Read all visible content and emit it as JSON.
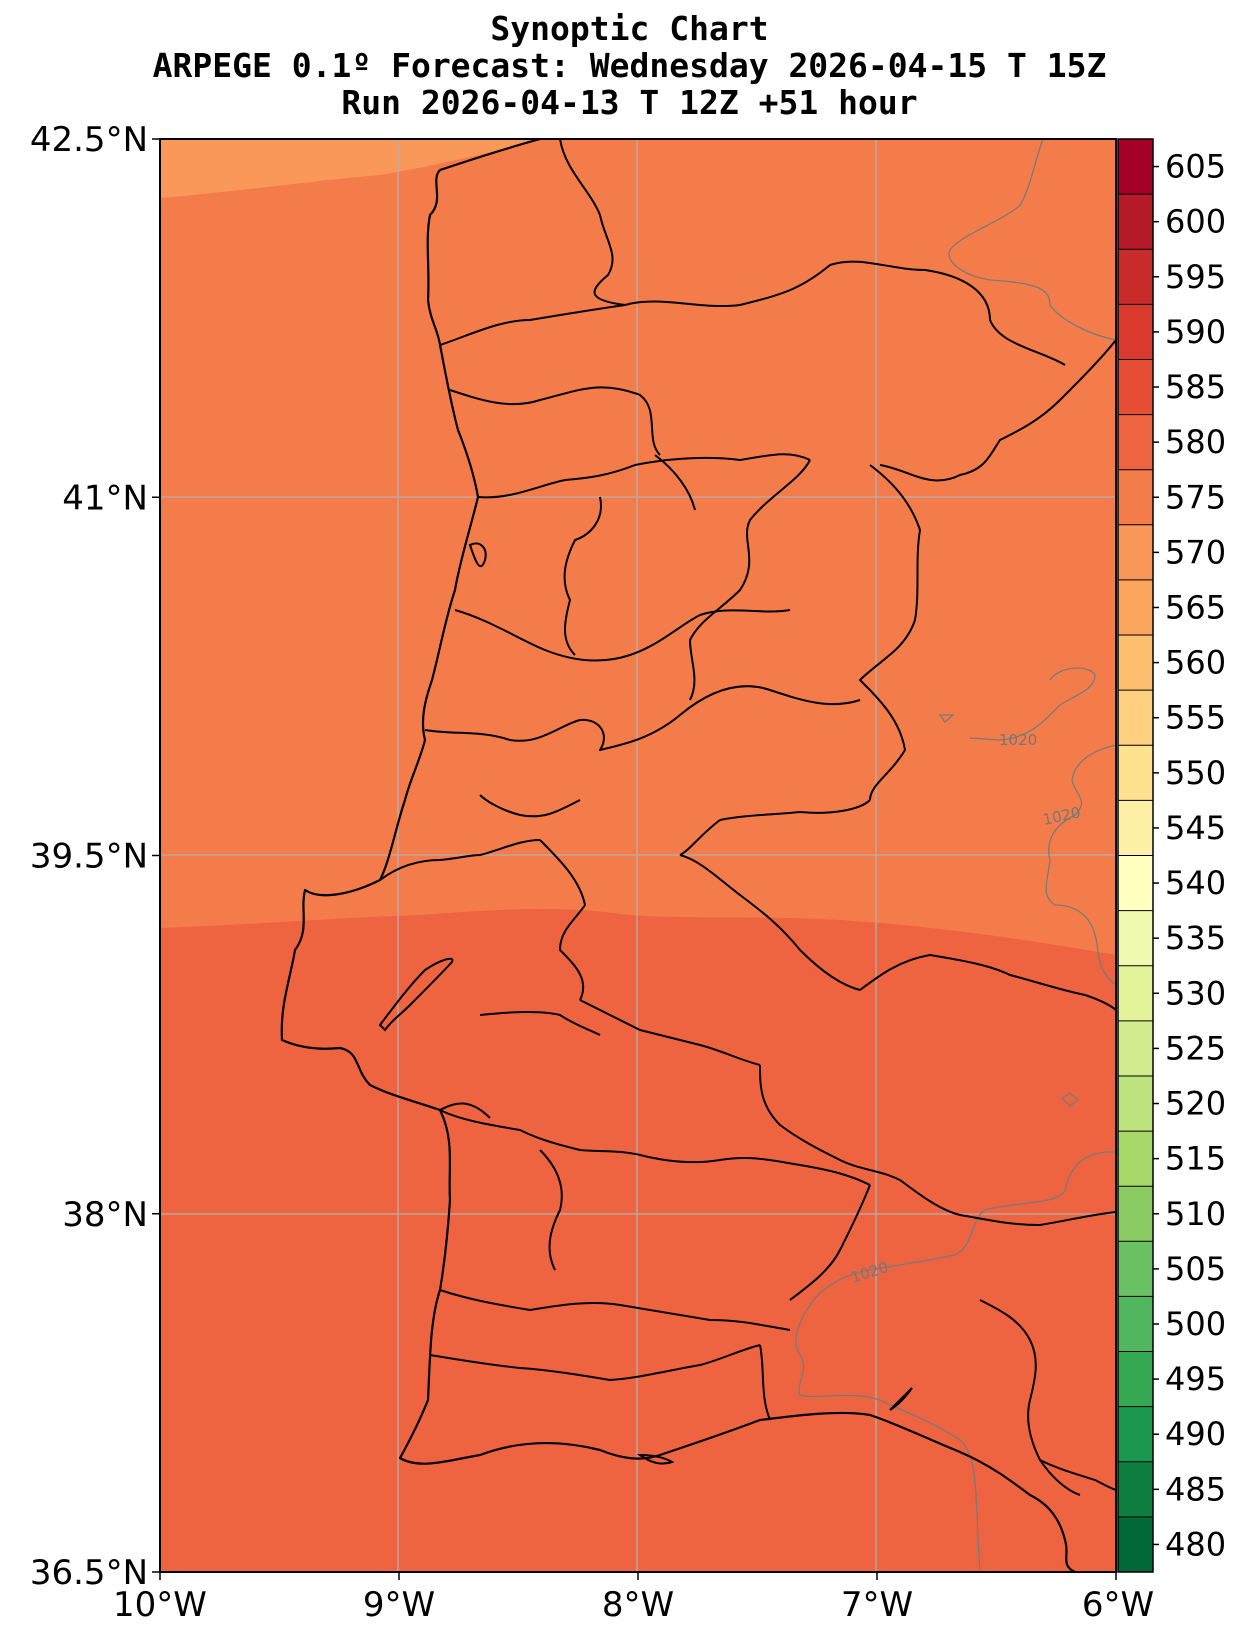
{
  "title": {
    "line1": "Synoptic Chart",
    "line2": "ARPEGE 0.1º Forecast: Wednesday 2026-04-15 T 15Z",
    "line3": "Run 2026-04-13 T 12Z +51 hour"
  },
  "map": {
    "lon_range": [
      -10,
      -6
    ],
    "lat_range": [
      36.5,
      42.5
    ],
    "x_ticks": [
      "10°W",
      "9°W",
      "8°W",
      "7°W",
      "6°W"
    ],
    "y_ticks": [
      "36.5°N",
      "38°N",
      "39.5°N",
      "41°N",
      "42.5°N"
    ],
    "gridlines": true,
    "fill_colors": {
      "band_565_570": "#f99858",
      "band_570_575": "#f47c4a",
      "band_575_580": "#ee6441"
    },
    "pressure_contour_labels": [
      "1020",
      "1020",
      "1020"
    ]
  },
  "colorbar": {
    "levels": [
      "480",
      "485",
      "490",
      "495",
      "500",
      "505",
      "510",
      "515",
      "520",
      "525",
      "530",
      "535",
      "540",
      "545",
      "550",
      "555",
      "560",
      "565",
      "570",
      "575",
      "580",
      "585",
      "590",
      "595",
      "600",
      "605"
    ],
    "colors": [
      "#006837",
      "#0f7f40",
      "#1a9850",
      "#36a852",
      "#52b65f",
      "#6bc064",
      "#8bcb64",
      "#a6d96a",
      "#bde381",
      "#d1ec8e",
      "#e3f399",
      "#f1f9b0",
      "#ffffbf",
      "#fff0a8",
      "#fee18f",
      "#fed07f",
      "#fdbf6f",
      "#fca55d",
      "#f99858",
      "#f47c4a",
      "#ee6441",
      "#e54e35",
      "#da3a2d",
      "#c72c2a",
      "#b41a28",
      "#a50026"
    ]
  }
}
